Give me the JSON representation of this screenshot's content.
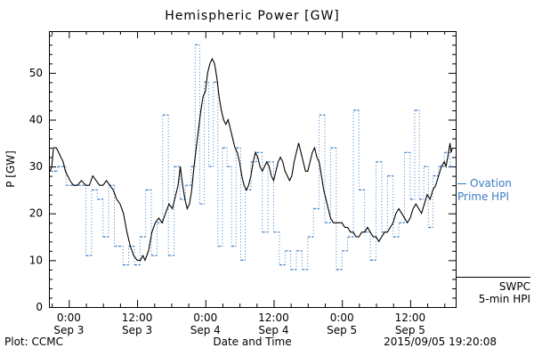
{
  "footer": {
    "credit": "Plot: CCMC",
    "timestamp": "2015/09/05 19:20:08"
  },
  "legend": {
    "ovation": {
      "line1": "Ovation",
      "line2": "Prime HPI"
    },
    "swpc": {
      "line1": "SWPC",
      "line2": "5-min HPI"
    }
  },
  "chart_data": {
    "type": "line",
    "title": "Hemispheric Power [GW]",
    "xlabel": "Date and Time",
    "ylabel": "P [GW]",
    "x_unit": "hours from Sep 3 00:00",
    "xlim": [
      -3.5,
      68
    ],
    "ylim": [
      0,
      58.9
    ],
    "y_ticks": [
      0,
      10,
      20,
      30,
      40,
      50
    ],
    "y_minor_step": 2,
    "x_minor_step": 3,
    "grid": false,
    "legend_position": "right-outside",
    "x_ticks": [
      {
        "hours": 0,
        "label": "0:00",
        "sublabel": "Sep 3"
      },
      {
        "hours": 12,
        "label": "12:00",
        "sublabel": "Sep 3"
      },
      {
        "hours": 24,
        "label": "0:00",
        "sublabel": "Sep 4"
      },
      {
        "hours": 36,
        "label": "12:00",
        "sublabel": "Sep 4"
      },
      {
        "hours": 48,
        "label": "0:00",
        "sublabel": "Sep 5"
      },
      {
        "hours": 60,
        "label": "12:00",
        "sublabel": "Sep 5"
      }
    ],
    "series": [
      {
        "name": "Ovation Prime HPI",
        "color": "#3a7cc2",
        "style": "step-dotted",
        "points": [
          [
            -3.3,
            29
          ],
          [
            -2,
            30
          ],
          [
            -0.5,
            26
          ],
          [
            3,
            11
          ],
          [
            4,
            25
          ],
          [
            5,
            23
          ],
          [
            6,
            15
          ],
          [
            7,
            26
          ],
          [
            8,
            13
          ],
          [
            9.5,
            9
          ],
          [
            10.5,
            13
          ],
          [
            11.5,
            9
          ],
          [
            12.5,
            15
          ],
          [
            13.5,
            25
          ],
          [
            14.5,
            11
          ],
          [
            15.5,
            18
          ],
          [
            16.5,
            41
          ],
          [
            17.5,
            11
          ],
          [
            18.5,
            30
          ],
          [
            19.5,
            23
          ],
          [
            20.5,
            26
          ],
          [
            21.5,
            30
          ],
          [
            22.2,
            56
          ],
          [
            23,
            22
          ],
          [
            23.8,
            48
          ],
          [
            24.6,
            30
          ],
          [
            25.4,
            48
          ],
          [
            26.2,
            13
          ],
          [
            27,
            34
          ],
          [
            27.8,
            30
          ],
          [
            28.6,
            13
          ],
          [
            29.4,
            34
          ],
          [
            30.2,
            10
          ],
          [
            31,
            25
          ],
          [
            32,
            31
          ],
          [
            33,
            33
          ],
          [
            34,
            16
          ],
          [
            35,
            31
          ],
          [
            36,
            16
          ],
          [
            37,
            9
          ],
          [
            38,
            12
          ],
          [
            39,
            8
          ],
          [
            40,
            12
          ],
          [
            41,
            8
          ],
          [
            42,
            15
          ],
          [
            43,
            21
          ],
          [
            44,
            41
          ],
          [
            45,
            18
          ],
          [
            46,
            34
          ],
          [
            47,
            8
          ],
          [
            48,
            12
          ],
          [
            49,
            15
          ],
          [
            50,
            42
          ],
          [
            51,
            25
          ],
          [
            52,
            16
          ],
          [
            53,
            10
          ],
          [
            54,
            31
          ],
          [
            55,
            16
          ],
          [
            56,
            28
          ],
          [
            57,
            15
          ],
          [
            58,
            18
          ],
          [
            59,
            33
          ],
          [
            60,
            23
          ],
          [
            60.8,
            42
          ],
          [
            61.6,
            23
          ],
          [
            62.4,
            30
          ],
          [
            63.2,
            17
          ],
          [
            64,
            28
          ],
          [
            65,
            30
          ],
          [
            66,
            33
          ],
          [
            67,
            30
          ]
        ]
      },
      {
        "name": "SWPC 5-min HPI",
        "color": "#000000",
        "style": "solid",
        "points": [
          [
            -3.3,
            29
          ],
          [
            -3,
            30
          ],
          [
            -2.7,
            34
          ],
          [
            -2.2,
            34
          ],
          [
            -1.8,
            33
          ],
          [
            -1.4,
            32
          ],
          [
            -1,
            31
          ],
          [
            -0.6,
            29
          ],
          [
            -0.2,
            28
          ],
          [
            0.2,
            27
          ],
          [
            0.8,
            26
          ],
          [
            1.5,
            26
          ],
          [
            2.2,
            27
          ],
          [
            3,
            26
          ],
          [
            3.6,
            26
          ],
          [
            4.2,
            28
          ],
          [
            4.8,
            27
          ],
          [
            5.4,
            26
          ],
          [
            6,
            26
          ],
          [
            6.6,
            27
          ],
          [
            7.2,
            26
          ],
          [
            7.8,
            25
          ],
          [
            8.4,
            23
          ],
          [
            9,
            22
          ],
          [
            9.6,
            20
          ],
          [
            10.2,
            16
          ],
          [
            10.8,
            13
          ],
          [
            11.4,
            11
          ],
          [
            12,
            10
          ],
          [
            12.6,
            10
          ],
          [
            13,
            11
          ],
          [
            13.4,
            10
          ],
          [
            14,
            12
          ],
          [
            14.6,
            16
          ],
          [
            15.2,
            18
          ],
          [
            15.8,
            19
          ],
          [
            16.4,
            18
          ],
          [
            17,
            20
          ],
          [
            17.6,
            22
          ],
          [
            18.2,
            21
          ],
          [
            18.8,
            24
          ],
          [
            19.2,
            26
          ],
          [
            19.6,
            30
          ],
          [
            20,
            26
          ],
          [
            20.4,
            23
          ],
          [
            20.8,
            21
          ],
          [
            21.2,
            22
          ],
          [
            21.6,
            25
          ],
          [
            22,
            30
          ],
          [
            22.4,
            34
          ],
          [
            22.8,
            38
          ],
          [
            23.2,
            42
          ],
          [
            23.6,
            45
          ],
          [
            24,
            46
          ],
          [
            24.4,
            50
          ],
          [
            24.8,
            52
          ],
          [
            25.2,
            53
          ],
          [
            25.6,
            52
          ],
          [
            26,
            49
          ],
          [
            26.4,
            45
          ],
          [
            26.8,
            42
          ],
          [
            27.2,
            40
          ],
          [
            27.6,
            39
          ],
          [
            28,
            40
          ],
          [
            28.4,
            38
          ],
          [
            28.8,
            36
          ],
          [
            29.2,
            34
          ],
          [
            29.6,
            33
          ],
          [
            30,
            31
          ],
          [
            30.4,
            28
          ],
          [
            30.8,
            26
          ],
          [
            31.2,
            25
          ],
          [
            31.6,
            26
          ],
          [
            32,
            28
          ],
          [
            32.4,
            31
          ],
          [
            32.8,
            33
          ],
          [
            33.2,
            32
          ],
          [
            33.6,
            30
          ],
          [
            34,
            29
          ],
          [
            34.4,
            30
          ],
          [
            34.8,
            31
          ],
          [
            35.2,
            30
          ],
          [
            35.6,
            28
          ],
          [
            36,
            27
          ],
          [
            36.4,
            29
          ],
          [
            36.8,
            31
          ],
          [
            37.2,
            32
          ],
          [
            37.6,
            31
          ],
          [
            38,
            29
          ],
          [
            38.4,
            28
          ],
          [
            38.8,
            27
          ],
          [
            39.2,
            28
          ],
          [
            39.6,
            31
          ],
          [
            40,
            33
          ],
          [
            40.4,
            35
          ],
          [
            40.8,
            33
          ],
          [
            41.2,
            31
          ],
          [
            41.6,
            29
          ],
          [
            42,
            29
          ],
          [
            42.4,
            31
          ],
          [
            42.8,
            33
          ],
          [
            43.2,
            34
          ],
          [
            43.6,
            32
          ],
          [
            44,
            31
          ],
          [
            44.4,
            28
          ],
          [
            44.8,
            25
          ],
          [
            45.2,
            23
          ],
          [
            45.6,
            21
          ],
          [
            46,
            19
          ],
          [
            46.5,
            18
          ],
          [
            47,
            18
          ],
          [
            48,
            18
          ],
          [
            48.5,
            17
          ],
          [
            49,
            17
          ],
          [
            49.5,
            16
          ],
          [
            50,
            16
          ],
          [
            50.5,
            15
          ],
          [
            51,
            15
          ],
          [
            51.5,
            16
          ],
          [
            52,
            16
          ],
          [
            52.5,
            17
          ],
          [
            53,
            16
          ],
          [
            53.5,
            15
          ],
          [
            54,
            15
          ],
          [
            54.5,
            14
          ],
          [
            55,
            15
          ],
          [
            55.5,
            16
          ],
          [
            56,
            16
          ],
          [
            56.5,
            17
          ],
          [
            57,
            18
          ],
          [
            57.5,
            20
          ],
          [
            58,
            21
          ],
          [
            58.5,
            20
          ],
          [
            59,
            19
          ],
          [
            59.5,
            18
          ],
          [
            60,
            19
          ],
          [
            60.5,
            21
          ],
          [
            61,
            22
          ],
          [
            61.5,
            21
          ],
          [
            62,
            20
          ],
          [
            62.5,
            22
          ],
          [
            63,
            24
          ],
          [
            63.5,
            23
          ],
          [
            64,
            25
          ],
          [
            64.5,
            26
          ],
          [
            65,
            28
          ],
          [
            65.5,
            30
          ],
          [
            66,
            31
          ],
          [
            66.3,
            30
          ],
          [
            66.6,
            32
          ],
          [
            67,
            35
          ],
          [
            67.2,
            33
          ],
          [
            67.4,
            34
          ]
        ]
      }
    ]
  }
}
